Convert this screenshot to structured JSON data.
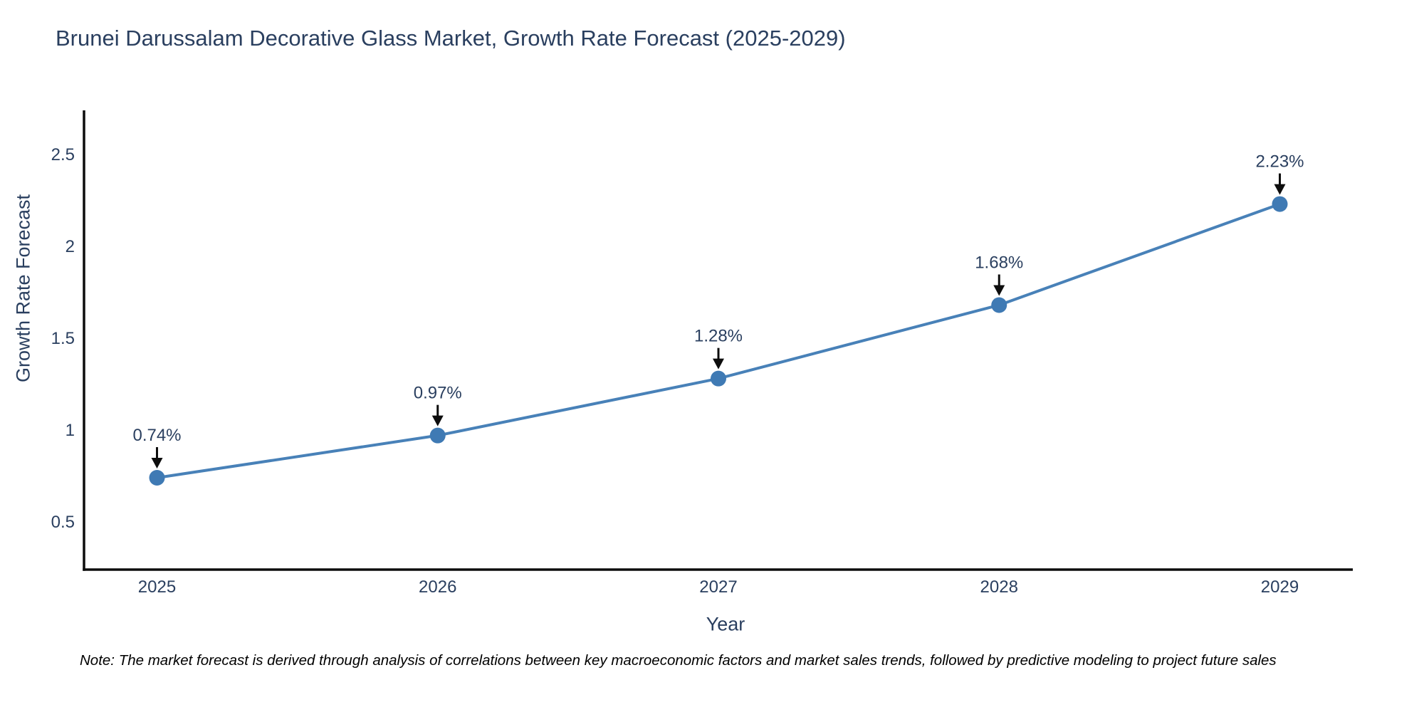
{
  "page": {
    "note": "Note: The market forecast is derived through analysis of correlations between key macroeconomic factors and market sales trends, followed by predictive modeling to project future sales"
  },
  "chart_data": {
    "type": "line",
    "title": "Brunei Darussalam Decorative Glass Market, Growth Rate Forecast (2025-2029)",
    "xlabel": "Year",
    "ylabel": "Growth Rate Forecast",
    "x": [
      2025,
      2026,
      2027,
      2028,
      2029
    ],
    "values": [
      0.74,
      0.97,
      1.28,
      1.68,
      2.23
    ],
    "point_labels": [
      "0.74%",
      "0.97%",
      "1.28%",
      "1.68%",
      "2.23%"
    ],
    "xtick_labels": [
      "2025",
      "2026",
      "2027",
      "2028",
      "2029"
    ],
    "ytick_values": [
      0.5,
      1,
      1.5,
      2,
      2.5
    ],
    "ytick_labels": [
      "0.5",
      "1",
      "1.5",
      "2",
      "2.5"
    ],
    "xlim": [
      2024.74,
      2029.26
    ],
    "ylim": [
      0.24,
      2.74
    ],
    "grid": false,
    "legend": "none",
    "annotation_style": "label-above-with-down-arrow",
    "colors": {
      "line": "#4881b8",
      "marker": "#3f7ab4",
      "axis": "#0d0d0d",
      "arrow": "#0d0d0d",
      "tick_text": "#2a3f5f",
      "title_text": "#2a3f5f",
      "annotation_text": "#2a3f5f",
      "note_text": "#000000"
    }
  }
}
